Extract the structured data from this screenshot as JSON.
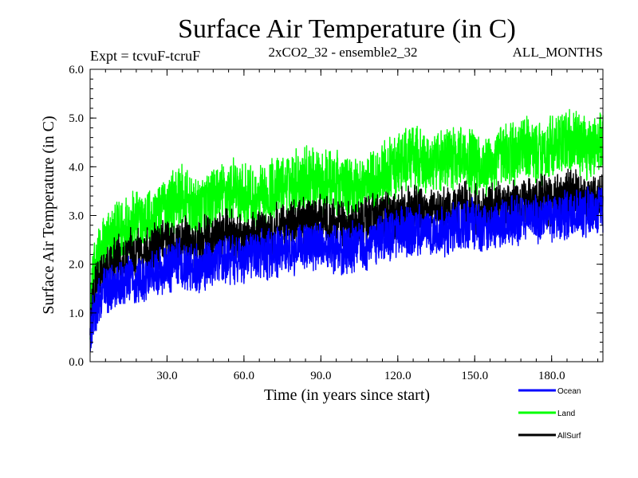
{
  "chart_data": {
    "type": "line",
    "title": "Surface Air Temperature (in C)",
    "subtitle_left": "Expt = tcvuF-tcruF",
    "subtitle_center": "2xCO2_32 - ensemble2_32",
    "subtitle_right": "ALL_MONTHS",
    "xlabel": "Time (in years since start)",
    "ylabel": "Surface Air Temperature (in C)",
    "xlim": [
      0,
      200
    ],
    "ylim": [
      0.0,
      6.0
    ],
    "xticks": [
      "30.0",
      "60.0",
      "90.0",
      "120.0",
      "150.0",
      "180.0"
    ],
    "xtick_values": [
      30,
      60,
      90,
      120,
      150,
      180
    ],
    "yticks": [
      "0.0",
      "1.0",
      "2.0",
      "3.0",
      "4.0",
      "5.0",
      "6.0"
    ],
    "ytick_values": [
      0,
      1,
      2,
      3,
      4,
      5,
      6
    ],
    "legend_position": "bottom-right, outside plot",
    "grid": false,
    "series": [
      {
        "name": "Land",
        "color": "#00ff00",
        "x": [
          0,
          1,
          3,
          5,
          8,
          12,
          16,
          20,
          25,
          30,
          35,
          40,
          45,
          50,
          55,
          60,
          65,
          70,
          75,
          80,
          85,
          90,
          95,
          100,
          105,
          110,
          115,
          120,
          125,
          130,
          135,
          140,
          145,
          150,
          155,
          160,
          165,
          170,
          175,
          180,
          185,
          190,
          195,
          199
        ],
        "values": [
          1.0,
          1.6,
          2.0,
          2.3,
          2.5,
          2.7,
          2.8,
          2.9,
          3.0,
          3.2,
          3.4,
          3.1,
          3.2,
          3.4,
          3.5,
          3.4,
          3.3,
          3.5,
          3.6,
          3.7,
          3.8,
          3.7,
          3.7,
          3.6,
          3.6,
          3.7,
          3.9,
          4.0,
          4.2,
          4.1,
          4.0,
          4.2,
          4.3,
          4.1,
          4.0,
          4.2,
          4.3,
          4.4,
          4.3,
          4.4,
          4.5,
          4.5,
          4.4,
          4.5
        ],
        "amplitude": 0.6
      },
      {
        "name": "AllSurf",
        "color": "#000000",
        "x": [
          0,
          1,
          3,
          5,
          8,
          12,
          16,
          20,
          25,
          30,
          35,
          40,
          45,
          50,
          55,
          60,
          65,
          70,
          75,
          80,
          85,
          90,
          95,
          100,
          105,
          110,
          115,
          120,
          125,
          130,
          135,
          140,
          145,
          150,
          155,
          160,
          165,
          170,
          175,
          180,
          185,
          190,
          195,
          199
        ],
        "values": [
          0.6,
          1.2,
          1.6,
          1.8,
          2.0,
          2.1,
          2.2,
          2.2,
          2.3,
          2.4,
          2.5,
          2.4,
          2.5,
          2.6,
          2.6,
          2.5,
          2.6,
          2.7,
          2.8,
          2.8,
          2.9,
          2.9,
          2.8,
          2.8,
          2.8,
          2.9,
          3.0,
          3.0,
          3.1,
          3.1,
          3.0,
          3.1,
          3.2,
          3.1,
          3.1,
          3.2,
          3.2,
          3.3,
          3.3,
          3.3,
          3.4,
          3.4,
          3.3,
          3.4
        ],
        "amplitude": 0.45
      },
      {
        "name": "Ocean",
        "color": "#0000ff",
        "x": [
          0,
          1,
          3,
          5,
          8,
          12,
          16,
          20,
          25,
          30,
          35,
          40,
          45,
          50,
          55,
          60,
          65,
          70,
          75,
          80,
          85,
          90,
          95,
          100,
          105,
          110,
          115,
          120,
          125,
          130,
          135,
          140,
          145,
          150,
          155,
          160,
          165,
          170,
          175,
          180,
          185,
          190,
          195,
          199
        ],
        "values": [
          0.4,
          0.9,
          1.2,
          1.4,
          1.5,
          1.6,
          1.7,
          1.7,
          1.8,
          1.9,
          2.0,
          1.9,
          2.0,
          2.1,
          2.1,
          2.1,
          2.2,
          2.2,
          2.3,
          2.3,
          2.4,
          2.4,
          2.3,
          2.3,
          2.4,
          2.4,
          2.6,
          2.6,
          2.7,
          2.7,
          2.6,
          2.7,
          2.8,
          2.8,
          2.7,
          2.8,
          2.9,
          2.9,
          2.9,
          3.0,
          3.0,
          3.1,
          3.0,
          3.1
        ],
        "amplitude": 0.45
      }
    ],
    "legend": [
      {
        "label": "Ocean",
        "color": "#0000ff"
      },
      {
        "label": "Land",
        "color": "#00ff00"
      },
      {
        "label": "AllSurf",
        "color": "#000000"
      }
    ]
  }
}
